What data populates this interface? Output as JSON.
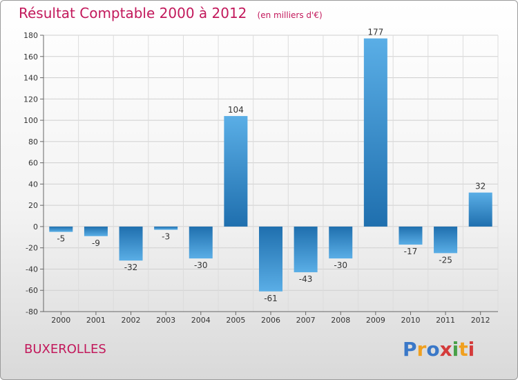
{
  "chart_data": {
    "type": "bar",
    "title": "Résultat Comptable 2000 à 2012",
    "subtitle": "(en milliers d'€)",
    "categories": [
      "2000",
      "2001",
      "2002",
      "2003",
      "2004",
      "2005",
      "2006",
      "2007",
      "2008",
      "2009",
      "2010",
      "2011",
      "2012"
    ],
    "values": [
      -5,
      -9,
      -32,
      -3,
      -30,
      104,
      -61,
      -43,
      -30,
      177,
      -17,
      -25,
      32
    ],
    "ylim": [
      -80,
      180
    ],
    "yticks": [
      -80,
      -60,
      -40,
      -20,
      0,
      20,
      40,
      60,
      80,
      100,
      120,
      140,
      160,
      180
    ],
    "xlabel": "",
    "ylabel": "",
    "grid": true
  },
  "commune": "BUXEROLLES",
  "logo": {
    "letters": [
      "P",
      "r",
      "o",
      "x",
      "i",
      "t",
      "i"
    ],
    "colors": [
      "#3a78c8",
      "#f0a020",
      "#3a78c8",
      "#d43b3b",
      "#48a048",
      "#f0a020",
      "#d43b3b"
    ]
  },
  "colors": {
    "title": "#c2185b",
    "bar_light": "#5aaee6",
    "bar_dark": "#1f6fae"
  }
}
